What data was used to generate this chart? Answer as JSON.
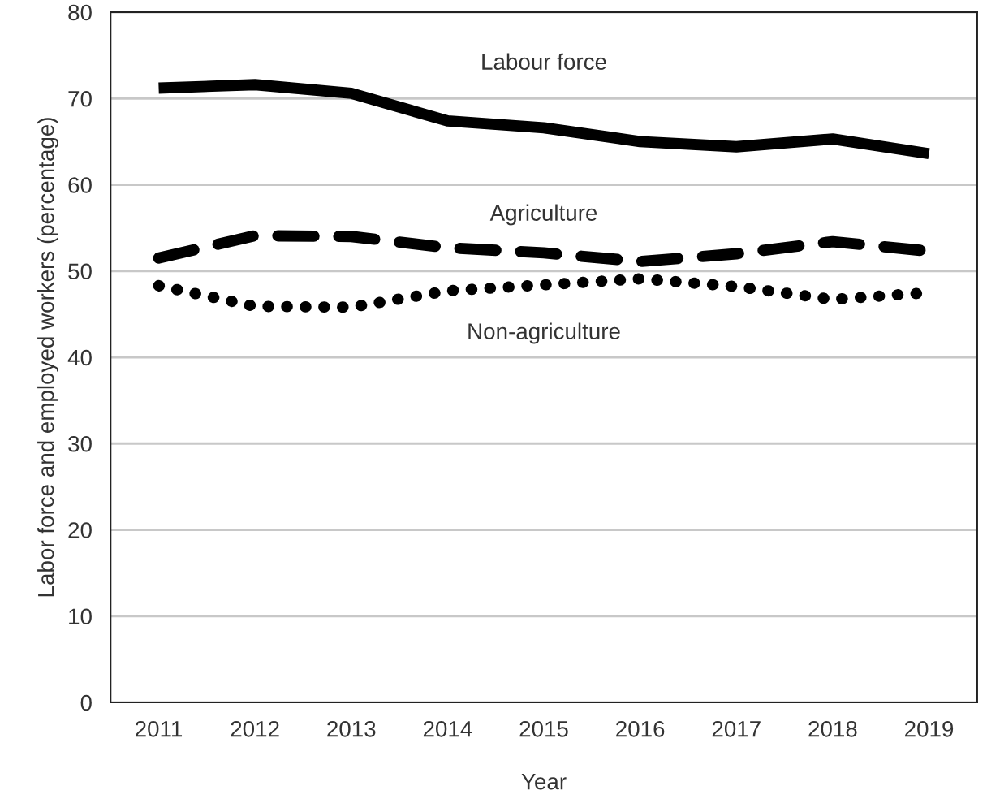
{
  "chart_data": {
    "type": "line",
    "xlabel": "Year",
    "ylabel": "Labor force and employed workers (percentage)",
    "categories": [
      "2011",
      "2012",
      "2013",
      "2014",
      "2015",
      "2016",
      "2017",
      "2018",
      "2019"
    ],
    "series": [
      {
        "name": "Labour force",
        "color": "#000000",
        "line_style": "solid",
        "values": [
          71.2,
          71.6,
          70.6,
          67.4,
          66.6,
          65.0,
          64.4,
          65.3,
          63.6
        ]
      },
      {
        "name": "Agriculture",
        "color": "#000000",
        "line_style": "dashed",
        "values": [
          51.5,
          54.1,
          54.0,
          52.7,
          52.1,
          51.1,
          52.0,
          53.4,
          52.3
        ]
      },
      {
        "name": "Non-agriculture",
        "color": "#000000",
        "line_style": "dotted",
        "values": [
          48.3,
          45.9,
          45.8,
          47.7,
          48.4,
          49.1,
          48.2,
          46.7,
          47.5
        ]
      }
    ],
    "ylim": [
      0,
      80
    ],
    "yticks": [
      0,
      10,
      20,
      30,
      40,
      50,
      60,
      70,
      80
    ],
    "grid": "y",
    "legend": false,
    "marker": "none"
  }
}
